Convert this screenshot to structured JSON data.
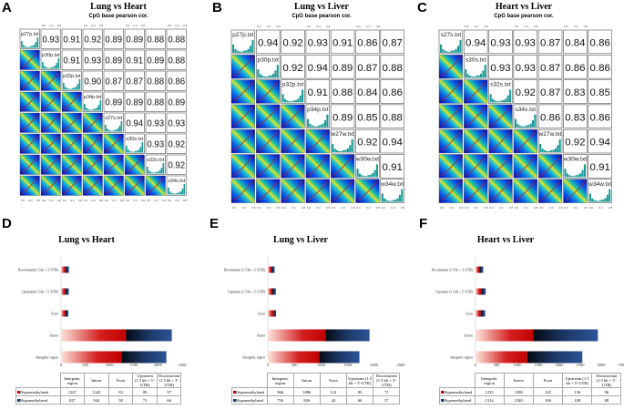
{
  "panels": {
    "A": "A",
    "B": "B",
    "C": "C",
    "D": "D",
    "E": "E",
    "F": "F"
  },
  "subtitle": "CpG base pearson cor.",
  "colors": {
    "hyper": "#cc0000",
    "hypo": "#1f3f7a"
  },
  "chart_data": [
    {
      "type": "heatmap",
      "title": "Lung vs Heart",
      "samples": [
        "p27p.txt",
        "p30p.txt",
        "p32p.txt",
        "p34p.txt",
        "s27s.txt",
        "s30s.txt",
        "s32s.txt",
        "s34s.txt"
      ],
      "upper": [
        [
          0.93,
          0.91,
          0.92,
          0.89,
          0.89,
          0.88,
          0.88
        ],
        [
          0.91,
          0.93,
          0.89,
          0.91,
          0.89,
          0.88
        ],
        [
          0.9,
          0.87,
          0.87,
          0.88,
          0.86
        ],
        [
          0.89,
          0.89,
          0.88,
          0.89
        ],
        [
          0.94,
          0.93,
          0.93
        ],
        [
          0.93,
          0.92
        ],
        [
          0.92
        ]
      ],
      "ticks": [
        "0.0",
        "0.4",
        "0.8"
      ]
    },
    {
      "type": "heatmap",
      "title": "Lung vs Liver",
      "samples": [
        "p27p.txt",
        "p30p.txt",
        "p32p.txt",
        "p34p.txt",
        "w27w.txt",
        "w30w.txt",
        "w34w.txt"
      ],
      "upper": [
        [
          0.94,
          0.92,
          0.93,
          0.91,
          0.86,
          0.87
        ],
        [
          0.92,
          0.94,
          0.89,
          0.87,
          0.88
        ],
        [
          0.91,
          0.88,
          0.84,
          0.86
        ],
        [
          0.89,
          0.85,
          0.88
        ],
        [
          0.92,
          0.94
        ],
        [
          0.91
        ]
      ],
      "ticks": [
        "0.0",
        "0.4",
        "0.8"
      ]
    },
    {
      "type": "heatmap",
      "title": "Heart vs Liver",
      "samples": [
        "s27s.txt",
        "s30s.txt",
        "s32s.txt",
        "s34s.txt",
        "w27w.txt",
        "w30w.txt",
        "w34w.txt"
      ],
      "upper": [
        [
          0.94,
          0.93,
          0.93,
          0.87,
          0.84,
          0.86
        ],
        [
          0.93,
          0.93,
          0.87,
          0.86,
          0.86
        ],
        [
          0.92,
          0.87,
          0.83,
          0.85
        ],
        [
          0.86,
          0.83,
          0.86
        ],
        [
          0.92,
          0.94
        ],
        [
          0.91
        ]
      ],
      "ticks": [
        "0.0",
        "0.4",
        "0.8"
      ]
    },
    {
      "type": "bar",
      "title": "Lung vs Heart",
      "categories": [
        "Intergenic region",
        "Intron",
        "Exon",
        "Upstream (1.5 kb + 5'-UTR)",
        "Downstream (1.5 kb + 3'-UTR)"
      ],
      "bar_labels": [
        "Intergenic region",
        "Intron",
        "Exon",
        "Upstream(1.5 kb + 5'-UTR)",
        "Downstream(1.5 kb + 3'-UTR)"
      ],
      "series": [
        {
          "name": "Hypermethylated",
          "values": [
            1247,
            1342,
            93,
            89,
            97
          ]
        },
        {
          "name": "Hypomethylated",
          "values": [
            927,
            944,
            58,
            71,
            66
          ]
        }
      ],
      "xlim": [
        0,
        2500
      ],
      "xticks": [
        "0",
        "500",
        "1000",
        "1500",
        "2000",
        "2500"
      ]
    },
    {
      "type": "bar",
      "title": "Lung vs Liver",
      "categories": [
        "Intergenic region",
        "Intron",
        "Exon",
        "Upstream (1.5 kb + 5'-UTR)",
        "Downstream (1.5 kb + 3'-UTR)"
      ],
      "bar_labels": [
        "Intergenic region",
        "Intron",
        "Exon",
        "Upstream (1.5 kb + 5'-UTR)",
        "Downstream (1.5 kb + 3'-UTR)"
      ],
      "series": [
        {
          "name": "Hypermethylated",
          "values": [
            966,
            1086,
            114,
            85,
            71
          ]
        },
        {
          "name": "Hypomethylated",
          "values": [
            756,
            826,
            42,
            66,
            57
          ]
        }
      ],
      "xlim": [
        0,
        2500
      ],
      "xticks": [
        "0",
        "500",
        "1000",
        "1500",
        "2000",
        "2500"
      ]
    },
    {
      "type": "bar",
      "title": "Heart vs Liver",
      "categories": [
        "Intergenic region",
        "Intron",
        "Exon",
        "Upstream (1.5 kb + 5'-UTR)",
        "Downstream (1.5 kb + 3'-UTR)"
      ],
      "bar_labels": [
        "Intergenic region",
        "Intron",
        "Exon",
        "Upstream (1.5 kb + 5'-UTR)",
        "Downstream (1.5 kb + 3'-UTR)"
      ],
      "series": [
        {
          "name": "Hypermethylated",
          "values": [
            1235,
            1380,
            125,
            136,
            96
          ]
        },
        {
          "name": "Hypomethylated",
          "values": [
            1314,
            1540,
            106,
            108,
            88
          ]
        }
      ],
      "xlim": [
        0,
        3500
      ],
      "xticks": [
        "0",
        "500",
        "1000",
        "1500",
        "2000",
        "2500",
        "3000",
        "3500"
      ]
    }
  ]
}
